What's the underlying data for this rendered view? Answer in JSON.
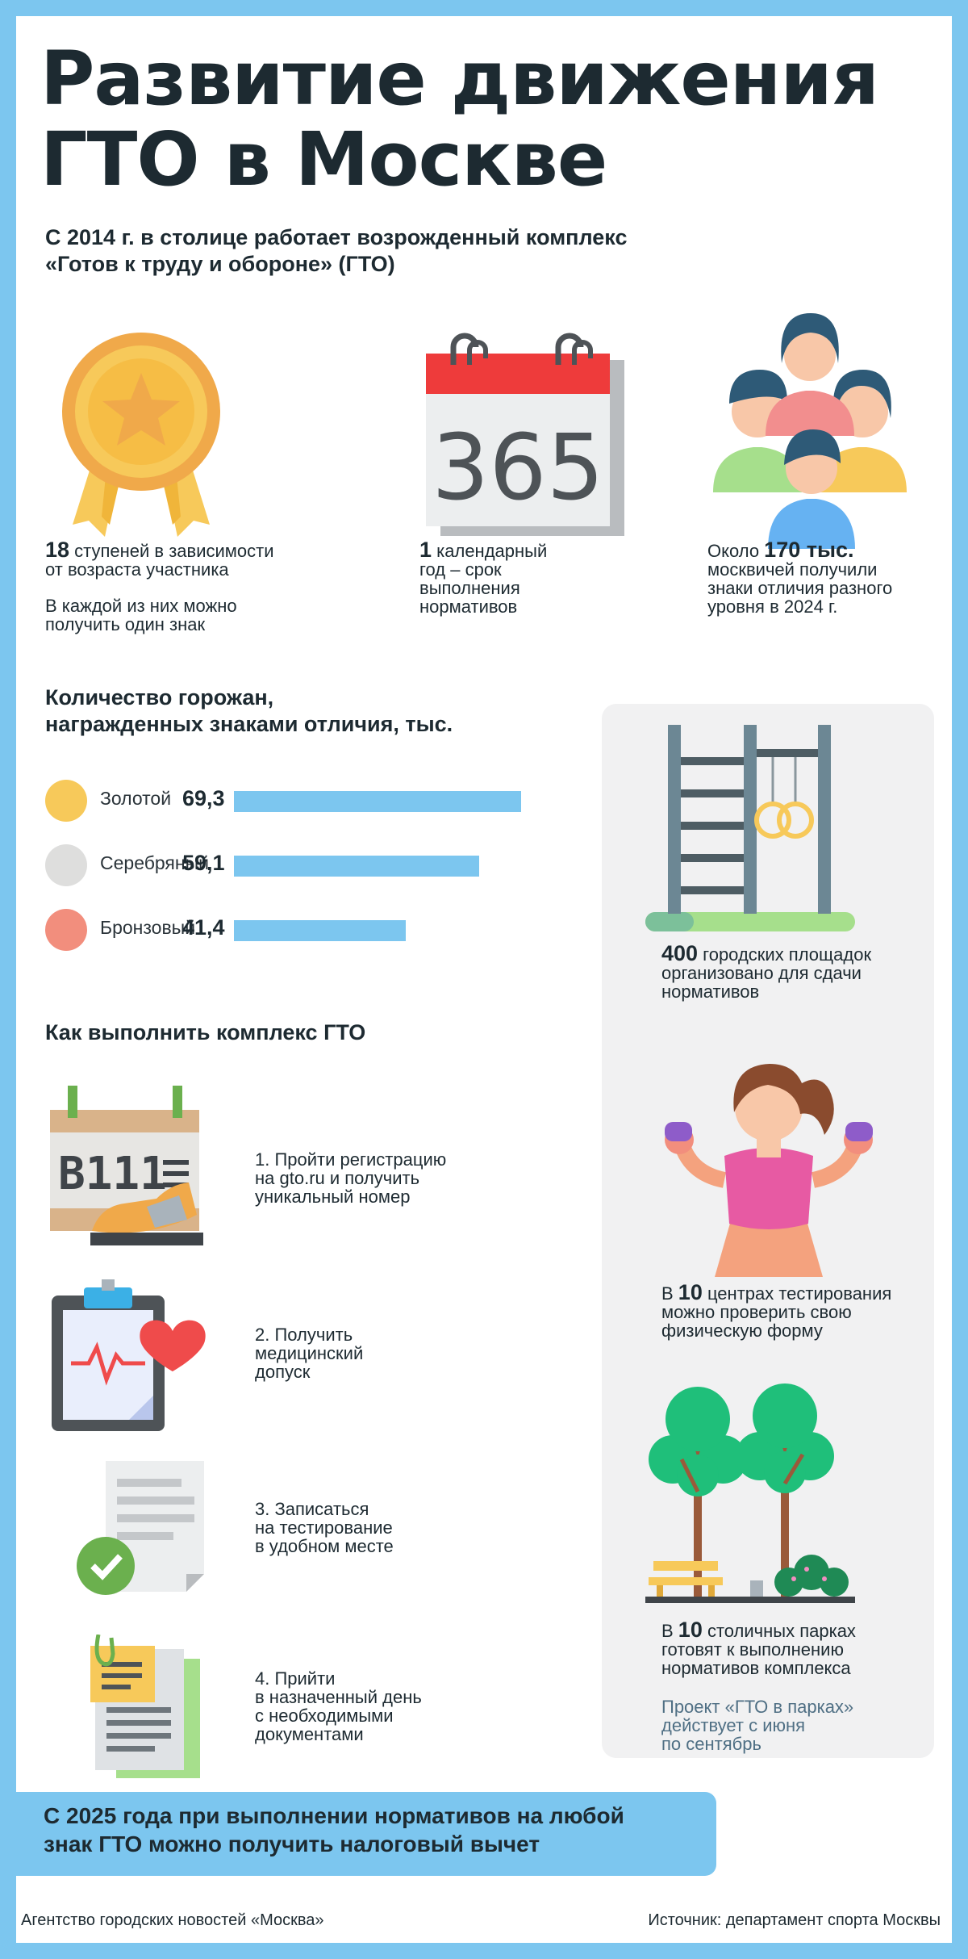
{
  "title": {
    "line1": "Развитие движения",
    "line2": "ГТО в Москве"
  },
  "subtitle": {
    "line1": "С 2014 г. в столице работает возрожденный комплекс",
    "line2": "«Готов к труду и обороне» (ГТО)"
  },
  "facts": {
    "stages": {
      "number": "18",
      "text1": " ступеней в зависимости",
      "text2": "от возраста участника",
      "text3": "В каждой из них можно",
      "text4": "получить один знак"
    },
    "year": {
      "number": "1",
      "text1": " календарный",
      "text2": "год – срок",
      "text3": "выполнения",
      "text4": "нормативов",
      "calendar_number": "365"
    },
    "people": {
      "prefix": "Около ",
      "number": "170 тыс.",
      "text2": "москвичей получили",
      "text3": "знаки отличия разного",
      "text4": "уровня в 2024 г."
    }
  },
  "awards": {
    "title1": "Количество горожан,",
    "title2": "награжденных знаками отличия, тыс.",
    "colors": {
      "gold": "#f7c95a",
      "silver": "#dededd",
      "bronze": "#f28e7d",
      "bar": "#7cc6ef"
    }
  },
  "chart_data": {
    "type": "bar",
    "categories": [
      "Золотой",
      "Серебряный",
      "Бронзовый"
    ],
    "values": [
      69.3,
      59.1,
      41.4
    ],
    "value_labels": [
      "69,3",
      "59,1",
      "41,4"
    ],
    "title": "Количество горожан, награжденных знаками отличия, тыс.",
    "xlabel": "",
    "ylabel": "",
    "xlim": [
      0,
      69.3
    ]
  },
  "howto": {
    "title": "Как выполнить комплекс ГТО",
    "steps": [
      {
        "lines": [
          "1. Пройти регистрацию",
          "на gto.ru и получить",
          "уникальный номер"
        ],
        "icon": "runner-number-icon",
        "bib_text": "B111"
      },
      {
        "lines": [
          "2. Получить",
          "медицинский",
          "допуск"
        ],
        "icon": "medical-clipboard-icon"
      },
      {
        "lines": [
          "3. Записаться",
          "на тестирование",
          "в удобном месте"
        ],
        "icon": "document-check-icon"
      },
      {
        "lines": [
          "4. Прийти",
          "в назначенный день",
          "с необходимыми",
          "документами"
        ],
        "icon": "documents-stack-icon"
      }
    ]
  },
  "panel": {
    "sites": {
      "number": "400",
      "text1": " городских площадок",
      "text2": "организовано для сдачи",
      "text3": "нормативов"
    },
    "centers": {
      "prefix": "В ",
      "number": "10",
      "text1": " центрах тестирования",
      "text2": "можно проверить свою",
      "text3": "физическую форму"
    },
    "parks": {
      "prefix": "В ",
      "number": "10",
      "text1": " столичных парках",
      "text2": "готовят к выполнению",
      "text3": "нормативов комплекса",
      "note1": "Проект «ГТО в парках»",
      "note2": "действует с июня",
      "note3": "по сентябрь"
    }
  },
  "banner": {
    "line1": "С 2025 года при выполнении нормативов на любой",
    "line2": "знак ГТО можно получить налоговый вычет"
  },
  "footer": {
    "agency": "Агентство городских новостей «Москва»",
    "source": "Источник: департамент спорта Москвы"
  }
}
